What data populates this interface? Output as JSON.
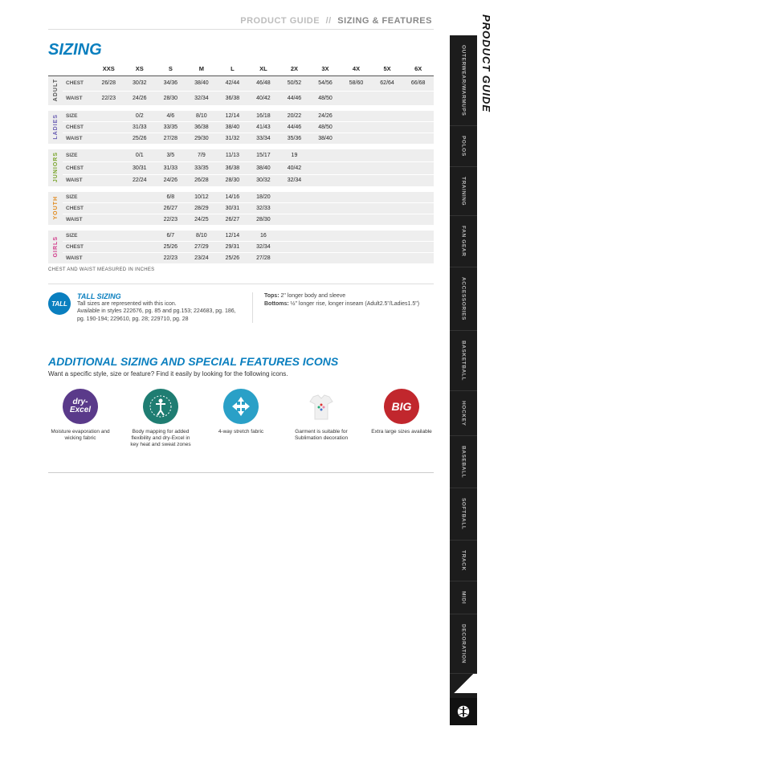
{
  "breadcrumb": {
    "a": "PRODUCT GUIDE",
    "sep": "//",
    "b": "SIZING & FEATURES"
  },
  "side_title": "PRODUCT GUIDE",
  "side_tabs": [
    "OUTERWEAR/WARMUPS",
    "POLOS",
    "TRAINING",
    "FAN GEAR",
    "ACCESSORIES",
    "BASKETBALL",
    "HOCKEY",
    "BASEBALL",
    "SOFTBALL",
    "TRACK",
    "MIDI",
    "DECORATION"
  ],
  "sizing": {
    "title": "SIZING",
    "headers": [
      "XXS",
      "XS",
      "S",
      "M",
      "L",
      "XL",
      "2X",
      "3X",
      "4X",
      "5X",
      "6X"
    ],
    "groups": [
      {
        "name": "ADULT",
        "color": "#555555",
        "rows": [
          {
            "label": "CHEST",
            "vals": [
              "26/28",
              "30/32",
              "34/36",
              "38/40",
              "42/44",
              "46/48",
              "50/52",
              "54/56",
              "58/60",
              "62/64",
              "66/68"
            ]
          },
          {
            "label": "WAIST",
            "vals": [
              "22/23",
              "24/26",
              "28/30",
              "32/34",
              "36/38",
              "40/42",
              "44/46",
              "48/50",
              "",
              "",
              ""
            ]
          }
        ]
      },
      {
        "name": "LADIES",
        "color": "#6b5fb3",
        "rows": [
          {
            "label": "SIZE",
            "vals": [
              "",
              "0/2",
              "4/6",
              "8/10",
              "12/14",
              "16/18",
              "20/22",
              "24/26",
              "",
              "",
              ""
            ]
          },
          {
            "label": "CHEST",
            "vals": [
              "",
              "31/33",
              "33/35",
              "36/38",
              "38/40",
              "41/43",
              "44/46",
              "48/50",
              "",
              "",
              ""
            ]
          },
          {
            "label": "WAIST",
            "vals": [
              "",
              "25/26",
              "27/28",
              "29/30",
              "31/32",
              "33/34",
              "35/36",
              "38/40",
              "",
              "",
              ""
            ]
          }
        ]
      },
      {
        "name": "JUNIORS",
        "color": "#7aa52d",
        "rows": [
          {
            "label": "SIZE",
            "vals": [
              "",
              "0/1",
              "3/5",
              "7/9",
              "11/13",
              "15/17",
              "19",
              "",
              "",
              "",
              ""
            ]
          },
          {
            "label": "CHEST",
            "vals": [
              "",
              "30/31",
              "31/33",
              "33/35",
              "36/38",
              "38/40",
              "40/42",
              "",
              "",
              "",
              ""
            ]
          },
          {
            "label": "WAIST",
            "vals": [
              "",
              "22/24",
              "24/26",
              "26/28",
              "28/30",
              "30/32",
              "32/34",
              "",
              "",
              "",
              ""
            ]
          }
        ]
      },
      {
        "name": "YOUTH",
        "color": "#e08a1e",
        "rows": [
          {
            "label": "SIZE",
            "vals": [
              "",
              "",
              "6/8",
              "10/12",
              "14/16",
              "18/20",
              "",
              "",
              "",
              "",
              ""
            ]
          },
          {
            "label": "CHEST",
            "vals": [
              "",
              "",
              "26/27",
              "28/29",
              "30/31",
              "32/33",
              "",
              "",
              "",
              "",
              ""
            ]
          },
          {
            "label": "WAIST",
            "vals": [
              "",
              "",
              "22/23",
              "24/25",
              "26/27",
              "28/30",
              "",
              "",
              "",
              "",
              ""
            ]
          }
        ]
      },
      {
        "name": "GIRLS",
        "color": "#d13b8a",
        "rows": [
          {
            "label": "SIZE",
            "vals": [
              "",
              "",
              "6/7",
              "8/10",
              "12/14",
              "16",
              "",
              "",
              "",
              "",
              ""
            ]
          },
          {
            "label": "CHEST",
            "vals": [
              "",
              "",
              "25/26",
              "27/29",
              "29/31",
              "32/34",
              "",
              "",
              "",
              "",
              ""
            ]
          },
          {
            "label": "WAIST",
            "vals": [
              "",
              "",
              "22/23",
              "23/24",
              "25/26",
              "27/28",
              "",
              "",
              "",
              "",
              ""
            ]
          }
        ]
      }
    ],
    "footnote": "CHEST AND WAIST MEASURED IN INCHES"
  },
  "tall": {
    "badge": "TALL",
    "heading": "TALL SIZING",
    "desc1": "Tall sizes are represented with this icon.",
    "desc2": "Available in styles 222676, pg. 85 and pg.153; 224683, pg. 186, pg. 190-194; 229610, pg. 28; 229710, pg. 28",
    "tops_label": "Tops:",
    "tops": " 2\" longer body and sleeve",
    "bottoms_label": "Bottoms:",
    "bottoms": " ½\" longer rise, longer inseam (Adult2.5\"/Ladies1.5\")"
  },
  "icons_section": {
    "title": "ADDITIONAL SIZING AND SPECIAL FEATURES ICONS",
    "sub": "Want a specific style, size or feature? Find it easily by looking for the following icons.",
    "items": [
      {
        "name": "dry-excel",
        "bg": "#5a3a8a",
        "label": "dry-\nExcel",
        "caption": "Moisture evaporation and wicking fabric"
      },
      {
        "name": "body-mapping",
        "bg": "#1f7d72",
        "label": "",
        "caption": "Body mapping for added flexibility and dry-Excel in key heat and sweat zones"
      },
      {
        "name": "four-way",
        "bg": "#2aa0c7",
        "label": "",
        "caption": "4-way stretch fabric"
      },
      {
        "name": "sublimation",
        "bg": "transparent",
        "label": "",
        "caption": "Garment is suitable for Sublimation decoration"
      },
      {
        "name": "big",
        "bg": "#c1272d",
        "label": "BIG",
        "caption": "Extra large sizes available"
      }
    ]
  }
}
